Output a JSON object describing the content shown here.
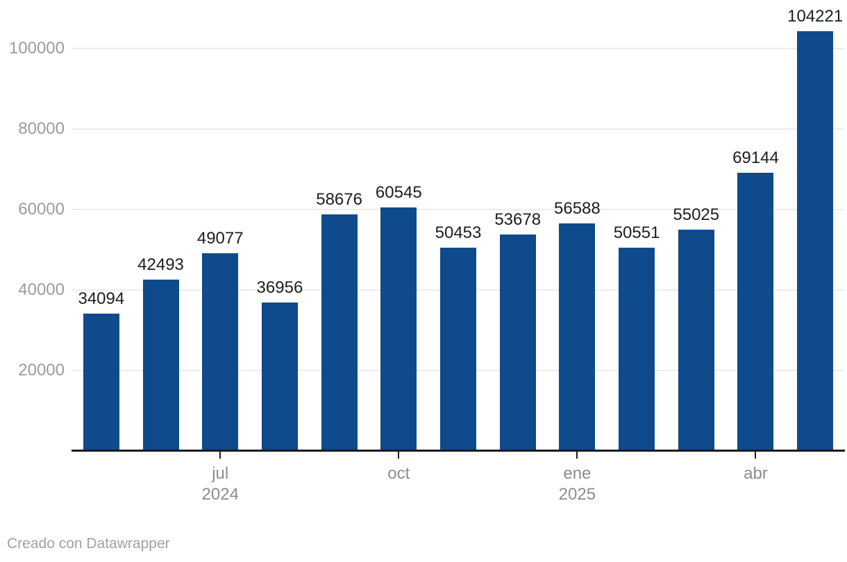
{
  "chart_data": {
    "type": "bar",
    "values": [
      34094,
      42493,
      49077,
      36956,
      58676,
      60545,
      50453,
      53678,
      56588,
      50551,
      55025,
      69144,
      104221
    ],
    "bar_color": "#0E4A8C",
    "value_label_color": "#1D1D1D",
    "y_axis": {
      "ticks": [
        20000,
        40000,
        60000,
        80000,
        100000
      ],
      "range": [
        0,
        112000
      ],
      "grid": true,
      "grid_color": "#ECECEC",
      "label_color": "#9B9B9B"
    },
    "x_axis": {
      "ticks": [
        {
          "bar_index": 2,
          "month": "jul",
          "year": "2024"
        },
        {
          "bar_index": 5,
          "month": "oct",
          "year": ""
        },
        {
          "bar_index": 8,
          "month": "ene",
          "year": "2025"
        },
        {
          "bar_index": 11,
          "month": "abr",
          "year": ""
        }
      ],
      "label_color": "#8C8C8C",
      "axis_line_color": "#1A1A1A",
      "tick_color": "#1A1A1A"
    },
    "legend": "none",
    "title": ""
  },
  "footer": {
    "credit": "Creado con Datawrapper",
    "credit_color": "#A1A1A1"
  }
}
